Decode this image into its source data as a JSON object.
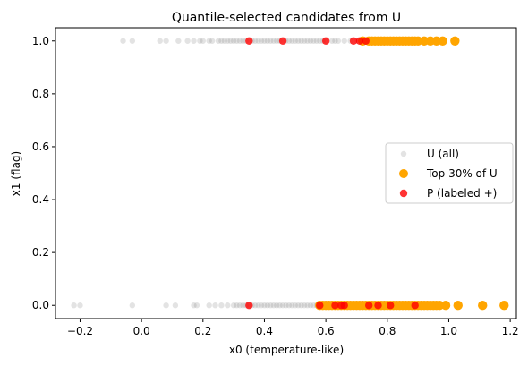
{
  "chart_data": {
    "type": "scatter",
    "title": "Quantile-selected candidates from U",
    "xlabel": "x0 (temperature-like)",
    "ylabel": "x1 (flag)",
    "xlim": [
      -0.28,
      1.22
    ],
    "ylim": [
      -0.05,
      1.05
    ],
    "xticks": [
      -0.2,
      0.0,
      0.2,
      0.4,
      0.6,
      0.8,
      1.0,
      1.2
    ],
    "xtick_labels": [
      "−0.2",
      "0.0",
      "0.2",
      "0.4",
      "0.6",
      "0.8",
      "1.0",
      "1.2"
    ],
    "yticks": [
      0.0,
      0.2,
      0.4,
      0.6,
      0.8,
      1.0
    ],
    "ytick_labels": [
      "0.0",
      "0.2",
      "0.4",
      "0.6",
      "0.8",
      "1.0"
    ],
    "grid": false,
    "legend_position": "center-right",
    "series": [
      {
        "name": "U (all)",
        "color": "#808080",
        "opacity": 0.22,
        "marker_size": "small",
        "points_y1": [
          -0.06,
          -0.03,
          0.06,
          0.08,
          0.12,
          0.15,
          0.17,
          0.19,
          0.2,
          0.22,
          0.23,
          0.25,
          0.26,
          0.27,
          0.28,
          0.29,
          0.3,
          0.31,
          0.32,
          0.33,
          0.34,
          0.36,
          0.37,
          0.38,
          0.39,
          0.4,
          0.41,
          0.42,
          0.43,
          0.44,
          0.45,
          0.47,
          0.48,
          0.49,
          0.5,
          0.51,
          0.52,
          0.53,
          0.54,
          0.55,
          0.56,
          0.57,
          0.58,
          0.59,
          0.6,
          0.62,
          0.63,
          0.64,
          0.66,
          0.68,
          0.7
        ],
        "points_y0": [
          -0.22,
          -0.2,
          -0.03,
          0.08,
          0.11,
          0.17,
          0.18,
          0.22,
          0.24,
          0.26,
          0.28,
          0.3,
          0.31,
          0.32,
          0.33,
          0.34,
          0.35,
          0.36,
          0.37,
          0.38,
          0.39,
          0.4,
          0.41,
          0.42,
          0.43,
          0.44,
          0.45,
          0.46,
          0.47,
          0.48,
          0.49,
          0.5,
          0.51,
          0.52,
          0.53,
          0.54,
          0.55,
          0.56,
          0.57
        ]
      },
      {
        "name": "Top 30% of U",
        "color": "#ffa500",
        "opacity": 1,
        "marker_size": "large",
        "points_y1": [
          0.72,
          0.74,
          0.75,
          0.76,
          0.77,
          0.78,
          0.79,
          0.8,
          0.81,
          0.82,
          0.83,
          0.84,
          0.85,
          0.86,
          0.87,
          0.88,
          0.89,
          0.9,
          0.92,
          0.94,
          0.96,
          0.98,
          1.02
        ],
        "points_y0": [
          0.58,
          0.59,
          0.6,
          0.61,
          0.62,
          0.63,
          0.64,
          0.65,
          0.66,
          0.67,
          0.68,
          0.69,
          0.7,
          0.71,
          0.72,
          0.73,
          0.74,
          0.75,
          0.76,
          0.77,
          0.78,
          0.79,
          0.8,
          0.81,
          0.82,
          0.83,
          0.84,
          0.85,
          0.86,
          0.87,
          0.88,
          0.89,
          0.9,
          0.91,
          0.92,
          0.93,
          0.94,
          0.95,
          0.96,
          0.97,
          0.99,
          1.03,
          1.11,
          1.18
        ]
      },
      {
        "name": "P (labeled +)",
        "color": "#ff0000",
        "opacity": 0.8,
        "marker_size": "medium",
        "points_y1": [
          0.35,
          0.46,
          0.6,
          0.69,
          0.71,
          0.73
        ],
        "points_y0": [
          0.35,
          0.58,
          0.63,
          0.65,
          0.66,
          0.74,
          0.77,
          0.81,
          0.89
        ]
      }
    ]
  }
}
